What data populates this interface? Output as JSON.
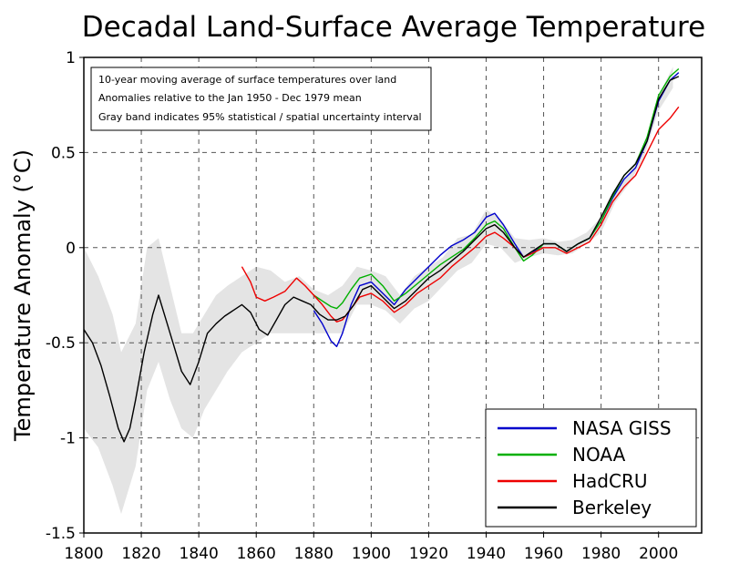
{
  "chart_data": {
    "type": "line",
    "title": "Decadal Land-Surface Average Temperature",
    "xlabel": "",
    "ylabel": "Temperature Anomaly (°C)",
    "xlim": [
      1800,
      2015
    ],
    "ylim": [
      -1.5,
      1.0
    ],
    "xticks": [
      1800,
      1820,
      1840,
      1860,
      1880,
      1900,
      1920,
      1940,
      1960,
      1980,
      2000
    ],
    "yticks": [
      -1.5,
      -1,
      -0.5,
      0,
      0.5,
      1
    ],
    "ytick_labels": [
      "-1.5",
      "-1",
      "-0.5",
      "0",
      "0.5",
      "1"
    ],
    "grid": true,
    "legend_position": "bottom-right",
    "annotations": [
      "10-year moving average of surface temperatures over land",
      "Anomalies relative to the Jan 1950 - Dec 1979 mean",
      "Gray band indicates 95% statistical / spatial uncertainty interval"
    ],
    "uncertainty_band": {
      "x": [
        1800,
        1805,
        1810,
        1813,
        1818,
        1822,
        1826,
        1830,
        1834,
        1838,
        1842,
        1846,
        1850,
        1855,
        1860,
        1865,
        1870,
        1875,
        1880,
        1885,
        1890,
        1895,
        1900,
        1905,
        1910,
        1915,
        1920,
        1925,
        1930,
        1935,
        1940,
        1945,
        1950,
        1955,
        1960,
        1965,
        1970,
        1975,
        1980,
        1985,
        1990,
        1995,
        2000,
        2005
      ],
      "lower": [
        -0.95,
        -1.05,
        -1.25,
        -1.4,
        -1.15,
        -0.75,
        -0.6,
        -0.8,
        -0.95,
        -1.0,
        -0.85,
        -0.75,
        -0.65,
        -0.55,
        -0.5,
        -0.45,
        -0.45,
        -0.45,
        -0.45,
        -0.45,
        -0.45,
        -0.3,
        -0.3,
        -0.33,
        -0.4,
        -0.32,
        -0.28,
        -0.2,
        -0.12,
        -0.08,
        0.02,
        0.0,
        -0.08,
        -0.05,
        -0.03,
        -0.04,
        -0.03,
        0.02,
        0.08,
        0.24,
        0.34,
        0.48,
        0.72,
        0.84
      ],
      "upper": [
        0.0,
        -0.15,
        -0.35,
        -0.55,
        -0.4,
        0.0,
        0.05,
        -0.2,
        -0.45,
        -0.45,
        -0.35,
        -0.25,
        -0.2,
        -0.15,
        -0.1,
        -0.12,
        -0.18,
        -0.15,
        -0.22,
        -0.25,
        -0.2,
        -0.1,
        -0.12,
        -0.15,
        -0.25,
        -0.15,
        -0.1,
        -0.05,
        0.05,
        0.07,
        0.2,
        0.15,
        0.05,
        0.04,
        0.05,
        0.03,
        0.04,
        0.08,
        0.16,
        0.3,
        0.4,
        0.54,
        0.8,
        0.95
      ]
    },
    "series": [
      {
        "name": "NASA GISS",
        "color": "#0000cc",
        "x": [
          1880,
          1883,
          1886,
          1888,
          1890,
          1893,
          1896,
          1900,
          1904,
          1908,
          1912,
          1916,
          1920,
          1924,
          1928,
          1932,
          1936,
          1940,
          1943,
          1946,
          1950,
          1953,
          1956,
          1960,
          1964,
          1968,
          1972,
          1976,
          1980,
          1984,
          1988,
          1992,
          1996,
          2000,
          2004,
          2007
        ],
        "y": [
          -0.33,
          -0.4,
          -0.49,
          -0.52,
          -0.45,
          -0.3,
          -0.2,
          -0.18,
          -0.24,
          -0.3,
          -0.22,
          -0.16,
          -0.1,
          -0.04,
          0.01,
          0.04,
          0.08,
          0.16,
          0.18,
          0.12,
          0.02,
          -0.05,
          -0.03,
          0.02,
          0.02,
          -0.02,
          0.02,
          0.05,
          0.14,
          0.26,
          0.36,
          0.42,
          0.56,
          0.77,
          0.88,
          0.92
        ]
      },
      {
        "name": "NOAA",
        "color": "#00b000",
        "x": [
          1880,
          1883,
          1886,
          1888,
          1890,
          1893,
          1896,
          1900,
          1904,
          1908,
          1912,
          1916,
          1920,
          1924,
          1928,
          1932,
          1936,
          1940,
          1943,
          1946,
          1950,
          1953,
          1956,
          1960,
          1964,
          1968,
          1972,
          1976,
          1980,
          1984,
          1988,
          1992,
          1996,
          2000,
          2004,
          2007
        ],
        "y": [
          -0.25,
          -0.28,
          -0.31,
          -0.32,
          -0.29,
          -0.22,
          -0.16,
          -0.14,
          -0.2,
          -0.28,
          -0.24,
          -0.19,
          -0.14,
          -0.09,
          -0.05,
          -0.01,
          0.05,
          0.12,
          0.14,
          0.1,
          0.0,
          -0.07,
          -0.04,
          0.02,
          0.02,
          -0.02,
          0.02,
          0.05,
          0.14,
          0.27,
          0.38,
          0.44,
          0.58,
          0.8,
          0.9,
          0.94
        ]
      },
      {
        "name": "HadCRU",
        "color": "#ee0000",
        "x": [
          1855,
          1858,
          1860,
          1863,
          1866,
          1870,
          1874,
          1877,
          1880,
          1883,
          1886,
          1888,
          1890,
          1893,
          1896,
          1900,
          1904,
          1908,
          1912,
          1916,
          1920,
          1924,
          1928,
          1932,
          1936,
          1940,
          1943,
          1946,
          1950,
          1953,
          1956,
          1960,
          1964,
          1968,
          1972,
          1976,
          1980,
          1984,
          1988,
          1992,
          1996,
          2000,
          2004,
          2007
        ],
        "y": [
          -0.1,
          -0.18,
          -0.26,
          -0.28,
          -0.26,
          -0.23,
          -0.16,
          -0.2,
          -0.25,
          -0.3,
          -0.36,
          -0.39,
          -0.38,
          -0.32,
          -0.26,
          -0.24,
          -0.28,
          -0.34,
          -0.3,
          -0.24,
          -0.2,
          -0.16,
          -0.1,
          -0.05,
          0.0,
          0.06,
          0.08,
          0.05,
          0.0,
          -0.05,
          -0.03,
          0.0,
          0.0,
          -0.03,
          0.0,
          0.03,
          0.12,
          0.24,
          0.32,
          0.38,
          0.5,
          0.62,
          0.68,
          0.74
        ]
      },
      {
        "name": "Berkeley",
        "color": "#000000",
        "x": [
          1800,
          1803,
          1806,
          1809,
          1812,
          1814,
          1816,
          1818,
          1821,
          1824,
          1826,
          1829,
          1831,
          1834,
          1837,
          1840,
          1843,
          1846,
          1849,
          1852,
          1855,
          1858,
          1861,
          1864,
          1867,
          1870,
          1873,
          1876,
          1879,
          1882,
          1885,
          1888,
          1891,
          1894,
          1897,
          1900,
          1904,
          1908,
          1912,
          1916,
          1920,
          1924,
          1928,
          1932,
          1936,
          1940,
          1943,
          1946,
          1950,
          1953,
          1956,
          1960,
          1964,
          1968,
          1972,
          1976,
          1980,
          1984,
          1988,
          1992,
          1996,
          2000,
          2004,
          2007
        ],
        "y": [
          -0.43,
          -0.5,
          -0.62,
          -0.78,
          -0.95,
          -1.02,
          -0.95,
          -0.8,
          -0.55,
          -0.35,
          -0.25,
          -0.4,
          -0.5,
          -0.65,
          -0.72,
          -0.6,
          -0.45,
          -0.4,
          -0.36,
          -0.33,
          -0.3,
          -0.34,
          -0.43,
          -0.46,
          -0.38,
          -0.3,
          -0.26,
          -0.28,
          -0.3,
          -0.35,
          -0.38,
          -0.38,
          -0.36,
          -0.3,
          -0.22,
          -0.2,
          -0.26,
          -0.32,
          -0.28,
          -0.22,
          -0.16,
          -0.12,
          -0.07,
          -0.02,
          0.04,
          0.1,
          0.12,
          0.08,
          0.0,
          -0.05,
          -0.02,
          0.02,
          0.02,
          -0.02,
          0.02,
          0.05,
          0.16,
          0.28,
          0.38,
          0.44,
          0.56,
          0.78,
          0.88,
          0.9
        ]
      }
    ]
  },
  "colors": {
    "band": "#e4e4e4",
    "grid": "#555555",
    "axis": "#000000"
  }
}
